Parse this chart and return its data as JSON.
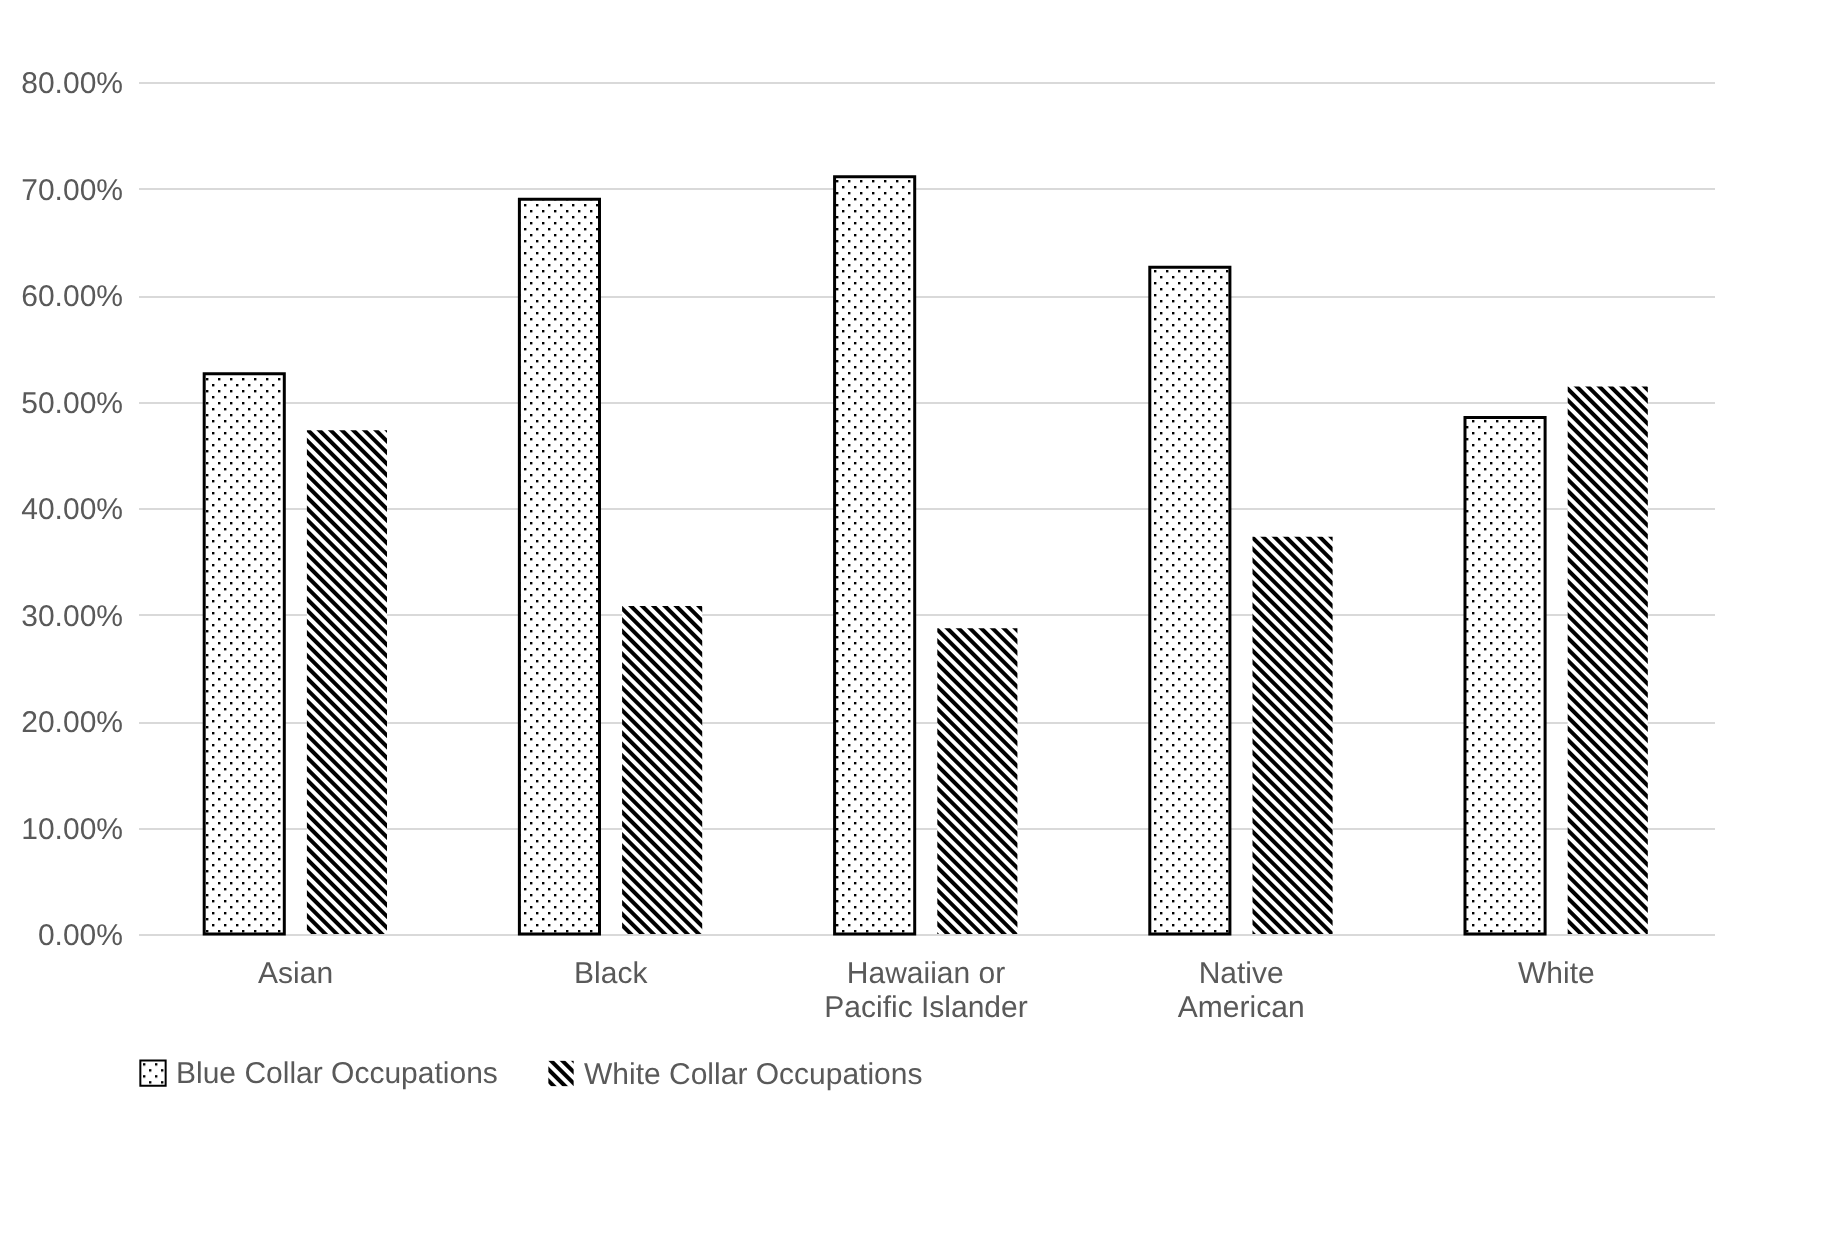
{
  "chart_data": {
    "type": "bar",
    "categories": [
      "Asian",
      "Black",
      "Hawaiian or Pacific Islander",
      "Native American",
      "White"
    ],
    "series": [
      {
        "name": "Blue Collar Occupations",
        "color": "#000000",
        "values": [
          52.6,
          69.0,
          71.1,
          62.6,
          48.5
        ]
      },
      {
        "name": "White Collar Occupations",
        "color": "#000000",
        "values": [
          47.3,
          30.8,
          28.7,
          37.3,
          51.4
        ]
      }
    ],
    "ylim": [
      0,
      80
    ],
    "yticks": [
      {
        "value": 0,
        "label": "0.00%"
      },
      {
        "value": 10,
        "label": "10.00%"
      },
      {
        "value": 20,
        "label": "20.00%"
      },
      {
        "value": 30,
        "label": "30.00%"
      },
      {
        "value": 40,
        "label": "40.00%"
      },
      {
        "value": 50,
        "label": "50.00%"
      },
      {
        "value": 60,
        "label": "60.00%"
      },
      {
        "value": 70,
        "label": "70.00%"
      },
      {
        "value": 80,
        "label": "80.00%"
      }
    ],
    "grid": true,
    "legend": "bottom"
  }
}
